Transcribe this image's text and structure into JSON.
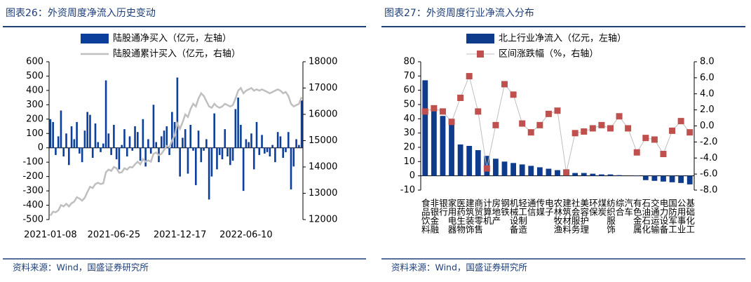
{
  "chart_data": [
    {
      "type": "combo",
      "title": "图表26：外资周度净流入历史变动",
      "source": "资料来源：Wind，国盛证券研究所",
      "categories": [
        "2021-01-08",
        null,
        null,
        null,
        null,
        null,
        null,
        null,
        null,
        null,
        null,
        null,
        null,
        null,
        null,
        null,
        null,
        null,
        null,
        null,
        null,
        null,
        null,
        null,
        "2021-06-25",
        null,
        null,
        null,
        null,
        null,
        null,
        null,
        null,
        null,
        null,
        null,
        null,
        null,
        null,
        null,
        null,
        null,
        null,
        null,
        null,
        null,
        null,
        null,
        null,
        "2021-12-17",
        null,
        null,
        null,
        null,
        null,
        null,
        null,
        null,
        null,
        null,
        null,
        null,
        null,
        null,
        null,
        null,
        null,
        null,
        null,
        null,
        null,
        null,
        null,
        null,
        "2022-06-10",
        null,
        null,
        null,
        null,
        null,
        null,
        null,
        null,
        null,
        null,
        null,
        null,
        null,
        null,
        null,
        null,
        null,
        null,
        null,
        null,
        null
      ],
      "series": [
        {
          "name": "陆股通净买入（亿元，左轴）",
          "color": "#0b3f9b",
          "values": [
            200,
            180,
            -50,
            80,
            260,
            -60,
            100,
            -120,
            150,
            60,
            180,
            -40,
            -100,
            120,
            250,
            230,
            -70,
            170,
            40,
            -30,
            30,
            470,
            100,
            -50,
            160,
            -80,
            -150,
            20,
            130,
            -60,
            80,
            -20,
            150,
            110,
            -90,
            200,
            -130,
            60,
            -40,
            300,
            40,
            -100,
            80,
            120,
            150,
            -50,
            250,
            180,
            490,
            -200,
            70,
            130,
            -180,
            160,
            -20,
            -260,
            120,
            -100,
            -20,
            60,
            -360,
            -200,
            240,
            -150,
            -50,
            -80,
            130,
            -60,
            -120,
            -90,
            270,
            350,
            160,
            -300,
            60,
            40,
            100,
            -150,
            180,
            -50,
            90,
            -40,
            -30,
            -60,
            20,
            -100,
            110,
            80,
            -70,
            -30,
            110,
            -290,
            -130,
            60,
            20,
            330
          ]
        },
        {
          "name": "陆股通累计买入（亿元，右轴）",
          "color": "#bfbfbf",
          "axis": "y2",
          "values": [
            12150,
            12300,
            12280,
            12350,
            12550,
            12500,
            12600,
            12500,
            12620,
            12680,
            12850,
            12800,
            12720,
            12830,
            13050,
            13250,
            13200,
            13350,
            13400,
            13350,
            13380,
            13800,
            13900,
            13850,
            14000,
            13950,
            13780,
            13800,
            13950,
            13900,
            14000,
            13980,
            14100,
            14200,
            14100,
            14300,
            14200,
            14250,
            14200,
            14500,
            14550,
            14450,
            14500,
            14650,
            14800,
            14750,
            15000,
            15200,
            15650,
            15450,
            15700,
            16000,
            15900,
            16200,
            16400,
            16300,
            16600,
            16800,
            16700,
            16500,
            16300,
            16250,
            16400,
            16300,
            16250,
            16300,
            16400,
            16350,
            16300,
            16350,
            16600,
            16900,
            17000,
            16800,
            16900,
            16950,
            17000,
            16900,
            16950,
            16900,
            16950,
            16900,
            16850,
            16800,
            16850,
            16900,
            16950,
            16900,
            16800,
            16850,
            16700,
            16400,
            16300,
            16350,
            16400,
            16650
          ]
        }
      ],
      "ylim": [
        -500,
        600
      ],
      "yticks": [
        -500,
        -400,
        -300,
        -200,
        -100,
        0,
        100,
        200,
        300,
        400,
        500,
        600
      ],
      "y2lim": [
        12000,
        18000
      ],
      "y2ticks": [
        12000,
        13000,
        14000,
        15000,
        16000,
        17000,
        18000
      ]
    },
    {
      "type": "combo",
      "title": "图表27：外资周度行业净流入分布",
      "source": "资料来源：Wind，国盛证券研究所",
      "label_orientation": "vertical",
      "categories": [
        "食品饮料",
        "非银金融",
        "银行",
        "家用电器",
        "医药生物",
        "建筑装饰",
        "商贸零售",
        "计算机",
        "房地产",
        "钢铁",
        "机械设备",
        "轻工制造",
        "通信",
        "传媒",
        "电子",
        "农林牧渔",
        "建筑材料",
        "社会服务",
        "美容护理",
        "环保",
        "煤炭",
        "纺织服饰",
        "综合",
        "汽车",
        "有色金属",
        "石油石化",
        "交通运输",
        "电力设备",
        "国防军工",
        "公用事业",
        "基础化工"
      ],
      "series": [
        {
          "name": "北上行业净流入（亿元，左轴）",
          "color": "#0e3b8c",
          "values": [
            67,
            46,
            42,
            40,
            22,
            21,
            18,
            14,
            12,
            10,
            9,
            8,
            7,
            6,
            5,
            4,
            3,
            2,
            2,
            1.5,
            1,
            1,
            0.5,
            0,
            -0.2,
            -3,
            -3.5,
            -4,
            -4.5,
            -5,
            -6
          ]
        },
        {
          "name": "区间涨跌幅（%，右轴）",
          "color": "#c0504d",
          "line_color": "#bfbfbf",
          "marker": "square",
          "axis": "y2",
          "values": [
            1.8,
            2.2,
            1.8,
            0.5,
            3.5,
            6.2,
            1.8,
            -5.3,
            0.1,
            5.2,
            3.9,
            0.3,
            -0.8,
            0.1,
            1.5,
            1.9,
            -5.8,
            -0.9,
            -0.7,
            -0.3,
            0.1,
            -0.3,
            1.2,
            -0.3,
            -3.3,
            -1.5,
            -1.7,
            -3.5,
            -0.6,
            0.6,
            -0.8
          ]
        }
      ],
      "ylim": [
        -10,
        80
      ],
      "yticks": [
        -10,
        0,
        10,
        20,
        30,
        40,
        50,
        60,
        70,
        80
      ],
      "y2lim": [
        -8,
        8
      ],
      "y2ticks": [
        {
          "value": -8,
          "label": "-8.0"
        },
        {
          "value": -6,
          "label": "-6.0"
        },
        {
          "value": -4,
          "label": "-4.0"
        },
        {
          "value": -2,
          "label": "-2.0"
        },
        {
          "value": 0,
          "label": "0.0"
        },
        {
          "value": 2,
          "label": "2.0"
        },
        {
          "value": 4,
          "label": "4.0"
        },
        {
          "value": 6,
          "label": "6.0"
        },
        {
          "value": 8,
          "label": "8.0"
        }
      ]
    }
  ]
}
